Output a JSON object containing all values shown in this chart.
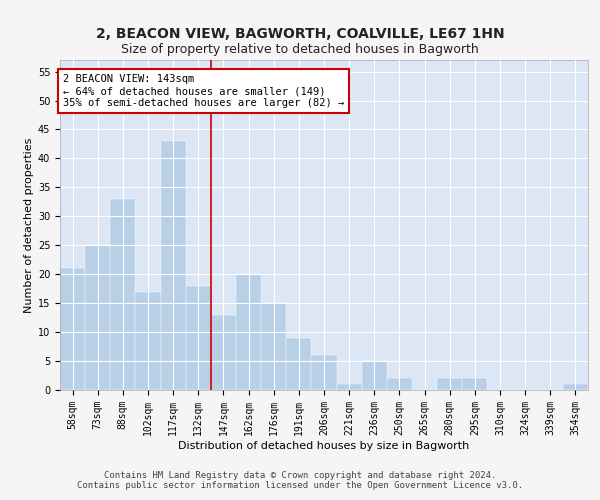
{
  "title": "2, BEACON VIEW, BAGWORTH, COALVILLE, LE67 1HN",
  "subtitle": "Size of property relative to detached houses in Bagworth",
  "xlabel": "Distribution of detached houses by size in Bagworth",
  "ylabel": "Number of detached properties",
  "categories": [
    "58sqm",
    "73sqm",
    "88sqm",
    "102sqm",
    "117sqm",
    "132sqm",
    "147sqm",
    "162sqm",
    "176sqm",
    "191sqm",
    "206sqm",
    "221sqm",
    "236sqm",
    "250sqm",
    "265sqm",
    "280sqm",
    "295sqm",
    "310sqm",
    "324sqm",
    "339sqm",
    "354sqm"
  ],
  "values": [
    21,
    25,
    33,
    17,
    43,
    18,
    13,
    20,
    15,
    9,
    6,
    1,
    5,
    2,
    0,
    2,
    2,
    0,
    0,
    0,
    1
  ],
  "bar_color": "#b8cfe8",
  "background_color": "#dce6f5",
  "grid_color": "#ffffff",
  "vline_x_index": 5.5,
  "vline_color": "#cc0000",
  "annotation_text_line1": "2 BEACON VIEW: 143sqm",
  "annotation_text_line2": "← 64% of detached houses are smaller (149)",
  "annotation_text_line3": "35% of semi-detached houses are larger (82) →",
  "annotation_box_color": "#cc0000",
  "ylim": [
    0,
    57
  ],
  "yticks": [
    0,
    5,
    10,
    15,
    20,
    25,
    30,
    35,
    40,
    45,
    50,
    55
  ],
  "footer_line1": "Contains HM Land Registry data © Crown copyright and database right 2024.",
  "footer_line2": "Contains public sector information licensed under the Open Government Licence v3.0.",
  "title_fontsize": 10,
  "subtitle_fontsize": 9,
  "axis_label_fontsize": 8,
  "tick_fontsize": 7,
  "annotation_fontsize": 7.5,
  "footer_fontsize": 6.5
}
